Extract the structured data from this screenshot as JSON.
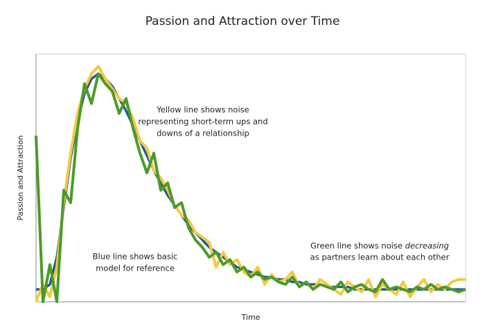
{
  "chart_data": {
    "type": "line",
    "title": "Passion and Attraction over Time",
    "x_label": "Time",
    "y_label": "Passion and Attraction",
    "x": [
      0,
      1,
      2,
      3,
      4,
      5,
      6,
      7,
      8,
      9,
      10,
      11,
      12,
      13,
      14,
      15,
      16,
      17,
      18,
      19,
      20,
      21,
      22,
      23,
      24,
      25,
      26,
      27,
      28,
      29,
      30,
      31,
      32,
      33,
      34,
      35,
      36,
      37,
      38,
      39,
      40,
      41,
      42,
      43,
      44,
      45,
      46,
      47,
      48,
      49,
      50,
      51,
      52,
      53,
      54,
      55,
      56,
      57,
      58,
      59,
      60,
      61,
      62
    ],
    "xlim": [
      0,
      62
    ],
    "ylim": [
      0,
      100
    ],
    "series": [
      {
        "color": "#1f5a96",
        "values": [
          5,
          5,
          7,
          18,
          38,
          58,
          73,
          84,
          90,
          92,
          90,
          87,
          82,
          77,
          71,
          65,
          59,
          53,
          48,
          43,
          39,
          35,
          31,
          28,
          25,
          22,
          20,
          18,
          16,
          14,
          13,
          12,
          11,
          10,
          10,
          9,
          9,
          8,
          8,
          7,
          7,
          7,
          6,
          6,
          6,
          6,
          5,
          5,
          5,
          5,
          5,
          5,
          5,
          5,
          5,
          5,
          5,
          5,
          5,
          5,
          5,
          5,
          5
        ]
      },
      {
        "color": "#f5c842",
        "values": [
          0,
          7,
          2,
          14,
          40,
          60,
          76,
          86,
          92,
          95,
          90,
          86,
          82,
          80,
          74,
          65,
          62,
          53,
          50,
          45,
          39,
          35,
          33,
          28,
          26,
          24,
          14,
          20,
          15,
          17,
          12,
          10,
          14,
          7,
          11,
          8,
          9,
          12,
          6,
          8,
          5,
          9,
          7,
          5,
          3,
          8,
          6,
          4,
          9,
          2,
          7,
          5,
          3,
          8,
          2,
          6,
          9,
          4,
          7,
          5,
          8,
          9,
          9
        ]
      },
      {
        "color": "#4c9a2a",
        "values": [
          67,
          0,
          15,
          0,
          45,
          40,
          70,
          88,
          80,
          92,
          88,
          85,
          76,
          82,
          70,
          60,
          52,
          60,
          45,
          48,
          38,
          40,
          30,
          25,
          22,
          18,
          20,
          15,
          17,
          12,
          14,
          10,
          12,
          9,
          10,
          8,
          7,
          10,
          6,
          8,
          5,
          7,
          6,
          5,
          8,
          4,
          6,
          7,
          5,
          4,
          9,
          5,
          6,
          5,
          4,
          6,
          5,
          7,
          5,
          6,
          5,
          4,
          5
        ]
      }
    ],
    "annotations": [
      {
        "lines": [
          "Yellow line shows noise",
          "representing short-term ups and",
          "downs of a relationship"
        ]
      },
      {
        "lines": [
          "Blue line shows basic",
          "model for reference"
        ]
      },
      {
        "lines": [
          "Green line shows noise",
          "decreasing",
          "as partners learn about each other"
        ]
      }
    ]
  }
}
